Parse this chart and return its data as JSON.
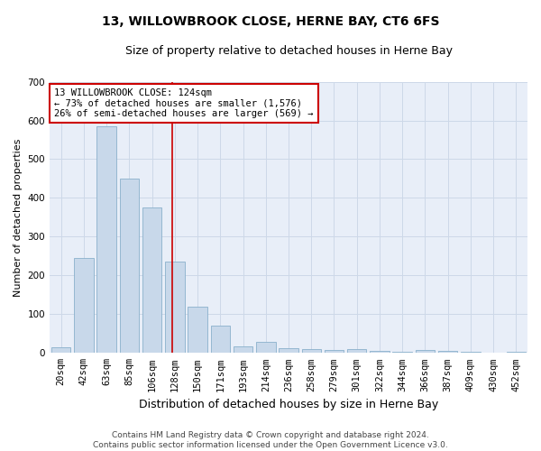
{
  "title": "13, WILLOWBROOK CLOSE, HERNE BAY, CT6 6FS",
  "subtitle": "Size of property relative to detached houses in Herne Bay",
  "xlabel": "Distribution of detached houses by size in Herne Bay",
  "ylabel": "Number of detached properties",
  "categories": [
    "20sqm",
    "42sqm",
    "63sqm",
    "85sqm",
    "106sqm",
    "128sqm",
    "150sqm",
    "171sqm",
    "193sqm",
    "214sqm",
    "236sqm",
    "258sqm",
    "279sqm",
    "301sqm",
    "322sqm",
    "344sqm",
    "366sqm",
    "387sqm",
    "409sqm",
    "430sqm",
    "452sqm"
  ],
  "values": [
    15,
    245,
    585,
    450,
    375,
    235,
    120,
    70,
    18,
    28,
    12,
    10,
    8,
    10,
    5,
    3,
    8,
    5,
    2,
    1,
    2
  ],
  "bar_color": "#c8d8ea",
  "bar_edge_color": "#8ab0cc",
  "bar_width": 0.85,
  "red_line_color": "#cc0000",
  "red_line_x": 4.88,
  "annotation_line1": "13 WILLOWBROOK CLOSE: 124sqm",
  "annotation_line2": "← 73% of detached houses are smaller (1,576)",
  "annotation_line3": "26% of semi-detached houses are larger (569) →",
  "annotation_box_color": "#ffffff",
  "annotation_box_edge": "#cc0000",
  "ylim": [
    0,
    700
  ],
  "yticks": [
    0,
    100,
    200,
    300,
    400,
    500,
    600,
    700
  ],
  "grid_color": "#cdd8e8",
  "background_color": "#e8eef8",
  "footer_line1": "Contains HM Land Registry data © Crown copyright and database right 2024.",
  "footer_line2": "Contains public sector information licensed under the Open Government Licence v3.0.",
  "title_fontsize": 10,
  "subtitle_fontsize": 9,
  "xlabel_fontsize": 9,
  "ylabel_fontsize": 8,
  "tick_fontsize": 7.5,
  "annotation_fontsize": 7.5,
  "footer_fontsize": 6.5
}
